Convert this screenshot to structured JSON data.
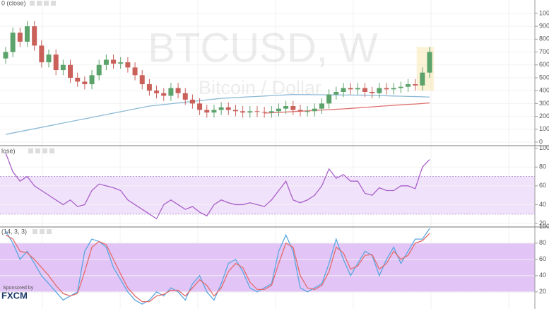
{
  "chart_data": [
    {
      "type": "candlestick",
      "label": "0 (close)",
      "watermark": "BTCUSD, W",
      "watermark_sub": "Bitcoin / Dollar",
      "ylim": [
        -22,
        1104
      ],
      "yticks": [
        0,
        100,
        200,
        300,
        400,
        500,
        600,
        700,
        800,
        900,
        1000
      ],
      "up_color": "#5ba36a",
      "down_color": "#c9605a",
      "open": [
        650,
        700,
        850,
        780,
        900,
        750,
        620,
        680,
        560,
        600,
        500,
        470,
        450,
        520,
        600,
        640,
        610,
        620,
        580,
        520,
        450,
        400,
        380,
        360,
        420,
        380,
        330,
        300,
        250,
        230,
        250,
        270,
        250,
        240,
        230,
        240,
        235,
        230,
        240,
        260,
        280,
        250,
        240,
        240,
        260,
        300,
        370,
        390,
        420,
        410,
        420,
        390,
        380,
        420,
        410,
        420,
        430,
        450,
        440,
        540
      ],
      "close": [
        700,
        850,
        780,
        900,
        750,
        620,
        680,
        560,
        600,
        500,
        470,
        450,
        520,
        600,
        640,
        610,
        620,
        580,
        520,
        450,
        400,
        380,
        360,
        420,
        380,
        330,
        300,
        250,
        230,
        250,
        270,
        250,
        240,
        230,
        240,
        235,
        230,
        240,
        260,
        280,
        250,
        240,
        240,
        260,
        300,
        370,
        390,
        420,
        410,
        420,
        390,
        380,
        420,
        410,
        420,
        430,
        450,
        440,
        540,
        700
      ],
      "high": [
        740,
        890,
        890,
        940,
        940,
        790,
        720,
        720,
        640,
        640,
        540,
        510,
        560,
        640,
        680,
        680,
        660,
        660,
        620,
        560,
        490,
        440,
        420,
        460,
        460,
        420,
        370,
        340,
        290,
        290,
        310,
        310,
        290,
        280,
        280,
        280,
        275,
        280,
        300,
        320,
        320,
        290,
        280,
        300,
        340,
        410,
        430,
        460,
        460,
        460,
        460,
        430,
        460,
        460,
        460,
        470,
        490,
        490,
        580,
        740
      ],
      "low": [
        610,
        660,
        740,
        740,
        710,
        580,
        580,
        520,
        520,
        460,
        430,
        410,
        410,
        480,
        560,
        570,
        570,
        540,
        480,
        410,
        360,
        340,
        320,
        320,
        340,
        290,
        260,
        210,
        190,
        190,
        210,
        210,
        200,
        190,
        190,
        195,
        190,
        190,
        200,
        220,
        210,
        200,
        200,
        200,
        220,
        260,
        330,
        350,
        370,
        370,
        350,
        340,
        340,
        370,
        370,
        380,
        390,
        400,
        400,
        500
      ],
      "series": [
        {
          "color": "#8cbad6",
          "values": [
            60,
            71,
            82,
            93,
            104,
            115,
            126,
            137,
            148,
            159,
            170,
            181,
            192,
            203,
            214,
            225,
            236,
            247,
            258,
            269,
            280,
            286,
            292,
            298,
            304,
            310,
            316,
            322,
            328,
            334,
            340,
            343,
            346,
            349,
            352,
            355,
            358,
            361,
            364,
            367,
            370,
            369,
            369,
            368,
            368,
            367,
            367,
            366,
            366,
            365,
            365,
            363,
            362,
            360,
            358,
            357,
            355,
            354,
            352,
            350
          ]
        },
        {
          "color": "#e07070",
          "values": [
            null,
            null,
            null,
            null,
            null,
            null,
            null,
            null,
            null,
            null,
            null,
            null,
            null,
            null,
            null,
            null,
            null,
            null,
            null,
            null,
            null,
            null,
            null,
            null,
            null,
            null,
            null,
            null,
            null,
            null,
            null,
            null,
            null,
            null,
            null,
            null,
            225,
            228,
            231,
            234,
            237,
            240,
            243,
            246,
            249,
            252,
            255,
            258,
            262,
            266,
            270,
            274,
            278,
            282,
            286,
            290,
            293,
            296,
            300,
            305
          ]
        }
      ]
    },
    {
      "type": "line",
      "label": "lose)",
      "ylim": [
        17,
        102
      ],
      "yticks": [
        20,
        40,
        60,
        80,
        100
      ],
      "band": [
        30,
        70
      ],
      "band_color": "#f1e2fb",
      "series": [
        {
          "color": "#a860c8",
          "values": [
            95,
            75,
            65,
            70,
            60,
            55,
            50,
            45,
            40,
            45,
            38,
            40,
            55,
            62,
            60,
            58,
            55,
            45,
            40,
            35,
            30,
            25,
            40,
            45,
            40,
            35,
            38,
            32,
            28,
            40,
            45,
            42,
            40,
            40,
            42,
            40,
            38,
            45,
            55,
            65,
            45,
            42,
            45,
            50,
            60,
            78,
            68,
            72,
            65,
            65,
            52,
            50,
            58,
            55,
            55,
            60,
            60,
            57,
            80,
            88
          ]
        }
      ]
    },
    {
      "type": "line",
      "label": "(14, 3, 3)",
      "ylim": [
        -1,
        99
      ],
      "yticks": [
        20,
        40,
        60,
        80,
        100
      ],
      "band": [
        20,
        80
      ],
      "band_color": "#e2c4f6",
      "series": [
        {
          "color": "#5aa7e0",
          "values": [
            95,
            80,
            60,
            70,
            55,
            40,
            30,
            20,
            10,
            15,
            20,
            70,
            85,
            82,
            75,
            50,
            35,
            20,
            10,
            5,
            10,
            20,
            15,
            25,
            20,
            10,
            30,
            40,
            20,
            10,
            30,
            55,
            60,
            45,
            25,
            20,
            25,
            30,
            70,
            90,
            70,
            25,
            20,
            25,
            30,
            55,
            85,
            60,
            40,
            55,
            70,
            65,
            40,
            60,
            75,
            55,
            70,
            85,
            85,
            98
          ]
        },
        {
          "color": "#e46a6a",
          "values": [
            90,
            85,
            70,
            68,
            60,
            50,
            40,
            28,
            18,
            15,
            18,
            45,
            75,
            82,
            78,
            60,
            42,
            25,
            15,
            8,
            8,
            15,
            17,
            22,
            22,
            15,
            25,
            35,
            28,
            15,
            25,
            45,
            55,
            50,
            32,
            23,
            23,
            28,
            55,
            80,
            75,
            40,
            25,
            23,
            28,
            45,
            75,
            68,
            48,
            52,
            65,
            66,
            48,
            55,
            70,
            60,
            65,
            80,
            83,
            92
          ]
        }
      ]
    }
  ],
  "footer": {
    "sponsor": "Sponsored by",
    "brand": "FXCM"
  }
}
